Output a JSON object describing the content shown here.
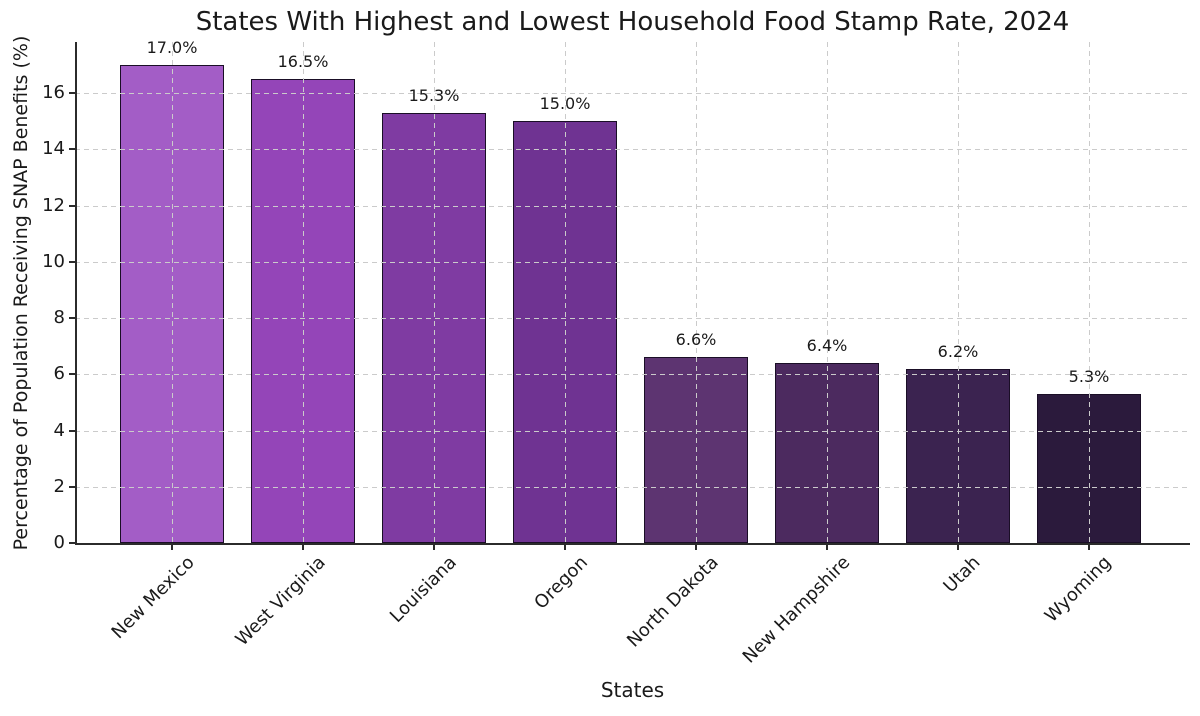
{
  "title": "States With Highest and Lowest Household Food Stamp Rate, 2024",
  "chart_data": {
    "type": "bar",
    "title": "States With Highest and Lowest Household Food Stamp Rate, 2024",
    "xlabel": "States",
    "ylabel": "Percentage of Population Receiving SNAP Benefits (%)",
    "categories": [
      "New Mexico",
      "West Virginia",
      "Louisiana",
      "Oregon",
      "North Dakota",
      "New Hampshire",
      "Utah",
      "Wyoming"
    ],
    "values": [
      17.0,
      16.5,
      15.3,
      15.0,
      6.6,
      6.4,
      6.2,
      5.3
    ],
    "value_labels": [
      "17.0%",
      "16.5%",
      "15.3%",
      "15.0%",
      "6.6%",
      "6.4%",
      "6.2%",
      "5.3%"
    ],
    "bar_colors": [
      "#a35dc6",
      "#9445b8",
      "#7f3ba2",
      "#6f3392",
      "#5d3471",
      "#4c2a5f",
      "#3b2350",
      "#2b1a3c"
    ],
    "bar_edge_color": "#1a0e26",
    "yticks": [
      0,
      2,
      4,
      6,
      8,
      10,
      12,
      14,
      16
    ],
    "ylim": [
      0,
      17.8
    ],
    "grid": "dashed, horizontal and vertical, drawn over bars",
    "grid_color": "#cbcbcb",
    "legend": "none",
    "background_color": "#ffffff",
    "text_color": "#1a1a1a"
  }
}
